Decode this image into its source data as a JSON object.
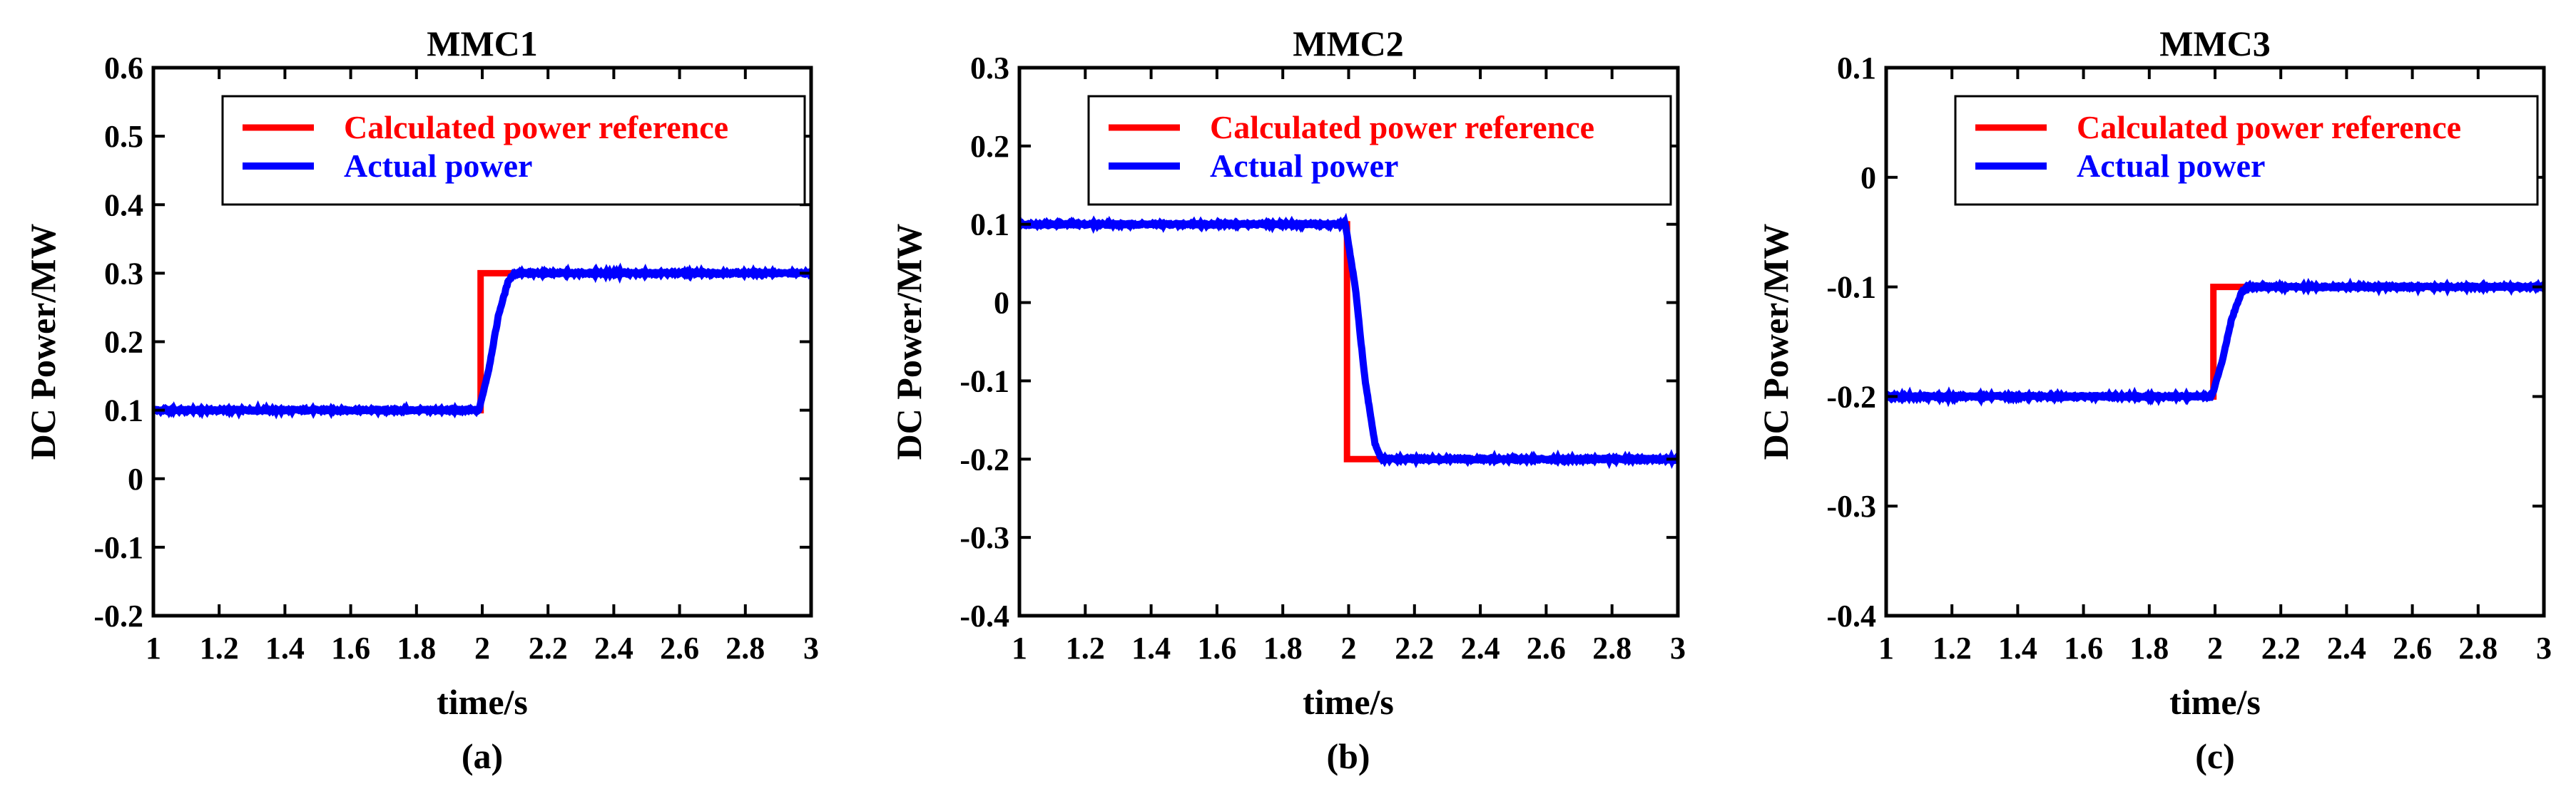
{
  "colors": {
    "reference": "#ff0000",
    "actual": "#0000ff",
    "axis": "#000000"
  },
  "chart_data": [
    {
      "type": "line",
      "panel_label": "(a)",
      "title": "MMC1",
      "xlabel": "time/s",
      "ylabel": "DC Power/MW",
      "xlim": [
        1,
        3
      ],
      "ylim": [
        -0.2,
        0.6
      ],
      "xticks": [
        1,
        1.2,
        1.4,
        1.6,
        1.8,
        2,
        2.2,
        2.4,
        2.6,
        2.8,
        3
      ],
      "xtick_labels": [
        "1",
        "1.2",
        "1.4",
        "1.6",
        "1.8",
        "2",
        "2.2",
        "2.4",
        "2.6",
        "2.8",
        "3"
      ],
      "yticks": [
        -0.2,
        -0.1,
        0,
        0.1,
        0.2,
        0.3,
        0.4,
        0.5,
        0.6
      ],
      "ytick_labels": [
        "-0.2",
        "-0.1",
        "0",
        "0.1",
        "0.2",
        "0.3",
        "0.4",
        "0.5",
        "0.6"
      ],
      "legend": [
        "Calculated power reference",
        "Actual power"
      ],
      "legend_position": "top-right",
      "series": [
        {
          "name": "Calculated power reference",
          "x": [
            1,
            1.995,
            1.995,
            3
          ],
          "y": [
            0.1,
            0.1,
            0.3,
            0.3
          ]
        },
        {
          "name": "Actual power",
          "x": [
            1,
            1.99,
            2.02,
            2.05,
            2.08,
            2.1,
            2.15,
            3
          ],
          "y": [
            0.1,
            0.1,
            0.16,
            0.24,
            0.29,
            0.3,
            0.3,
            0.3
          ]
        }
      ]
    },
    {
      "type": "line",
      "panel_label": "(b)",
      "title": "MMC2",
      "xlabel": "time/s",
      "ylabel": "DC Power/MW",
      "xlim": [
        1,
        3
      ],
      "ylim": [
        -0.4,
        0.3
      ],
      "xticks": [
        1,
        1.2,
        1.4,
        1.6,
        1.8,
        2,
        2.2,
        2.4,
        2.6,
        2.8,
        3
      ],
      "xtick_labels": [
        "1",
        "1.2",
        "1.4",
        "1.6",
        "1.8",
        "2",
        "2.2",
        "2.4",
        "2.6",
        "2.8",
        "3"
      ],
      "yticks": [
        -0.4,
        -0.3,
        -0.2,
        -0.1,
        0,
        0.1,
        0.2,
        0.3
      ],
      "ytick_labels": [
        "-0.4",
        "-0.3",
        "-0.2",
        "-0.1",
        "0",
        "0.1",
        "0.2",
        "0.3"
      ],
      "legend": [
        "Calculated power reference",
        "Actual power"
      ],
      "legend_position": "top-right",
      "series": [
        {
          "name": "Calculated power reference",
          "x": [
            1,
            1.995,
            1.995,
            3
          ],
          "y": [
            0.1,
            0.1,
            -0.2,
            -0.2
          ]
        },
        {
          "name": "Actual power",
          "x": [
            1,
            1.99,
            2.02,
            2.05,
            2.08,
            2.1,
            2.15,
            3
          ],
          "y": [
            0.1,
            0.1,
            0.02,
            -0.1,
            -0.18,
            -0.2,
            -0.2,
            -0.2
          ]
        }
      ]
    },
    {
      "type": "line",
      "panel_label": "(c)",
      "title": "MMC3",
      "xlabel": "time/s",
      "ylabel": "DC Power/MW",
      "xlim": [
        1,
        3
      ],
      "ylim": [
        -0.4,
        0.1
      ],
      "xticks": [
        1,
        1.2,
        1.4,
        1.6,
        1.8,
        2,
        2.2,
        2.4,
        2.6,
        2.8,
        3
      ],
      "xtick_labels": [
        "1",
        "1.2",
        "1.4",
        "1.6",
        "1.8",
        "2",
        "2.2",
        "2.4",
        "2.6",
        "2.8",
        "3"
      ],
      "yticks": [
        -0.4,
        -0.3,
        -0.2,
        -0.1,
        0,
        0.1
      ],
      "ytick_labels": [
        "-0.4",
        "-0.3",
        "-0.2",
        "-0.1",
        "0",
        "0.1"
      ],
      "legend": [
        "Calculated power reference",
        "Actual power"
      ],
      "legend_position": "top-right",
      "series": [
        {
          "name": "Calculated power reference",
          "x": [
            1,
            1.995,
            1.995,
            3
          ],
          "y": [
            -0.2,
            -0.2,
            -0.1,
            -0.1
          ]
        },
        {
          "name": "Actual power",
          "x": [
            1,
            1.99,
            2.02,
            2.05,
            2.08,
            2.1,
            2.15,
            3
          ],
          "y": [
            -0.2,
            -0.2,
            -0.17,
            -0.13,
            -0.105,
            -0.1,
            -0.1,
            -0.1
          ]
        }
      ]
    }
  ]
}
